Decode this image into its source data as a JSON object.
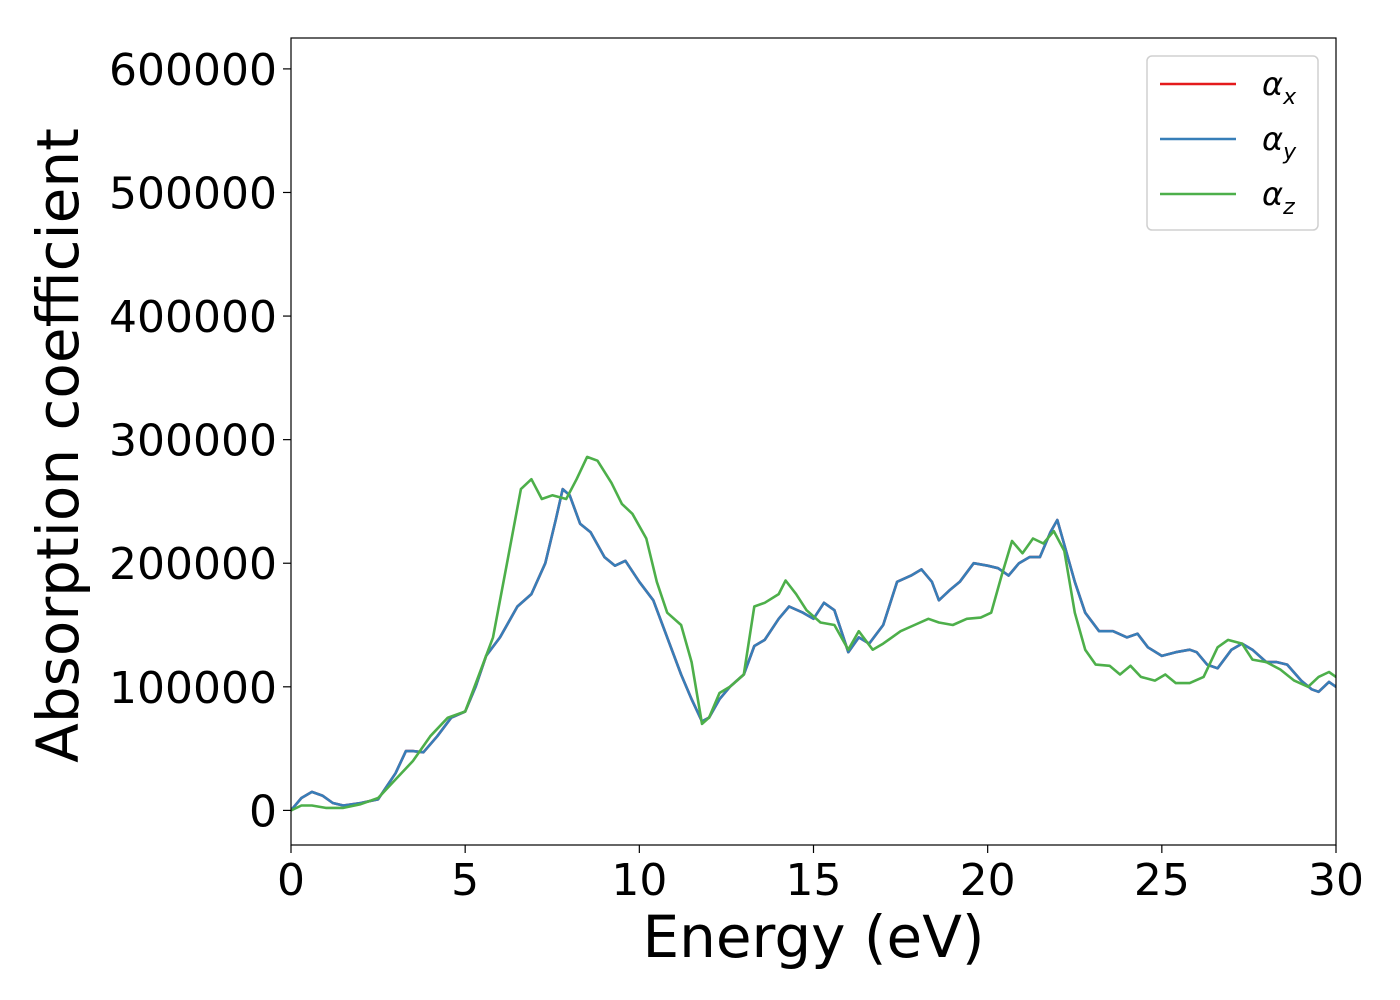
{
  "chart_data": {
    "type": "line",
    "xlabel": "Energy (eV)",
    "ylabel": "Absorption coefficient",
    "xlim": [
      0,
      30
    ],
    "ylim": [
      -28000,
      625000
    ],
    "xticks": [
      0,
      5,
      10,
      15,
      20,
      25,
      30
    ],
    "yticks": [
      0,
      100000,
      200000,
      300000,
      400000,
      500000,
      600000
    ],
    "grid": false,
    "legend_position": "top-right",
    "colors": {
      "x": "#e41a1c",
      "y": "#377eb8",
      "z": "#4daf4a"
    },
    "series": [
      {
        "name": "α_x",
        "symbol": "α",
        "subscript": "x",
        "color": "#e41a1c",
        "points": [
          [
            0,
            0
          ],
          [
            0.3,
            10000
          ],
          [
            0.6,
            15000
          ],
          [
            0.9,
            12000
          ],
          [
            1.2,
            6000
          ],
          [
            1.5,
            4000
          ],
          [
            2,
            6000
          ],
          [
            2.5,
            9000
          ],
          [
            3,
            30000
          ],
          [
            3.3,
            48000
          ],
          [
            3.5,
            48000
          ],
          [
            3.8,
            47000
          ],
          [
            4.2,
            60000
          ],
          [
            4.6,
            75000
          ],
          [
            5,
            80000
          ],
          [
            5.3,
            100000
          ],
          [
            5.6,
            125000
          ],
          [
            6,
            140000
          ],
          [
            6.5,
            165000
          ],
          [
            6.9,
            175000
          ],
          [
            7.3,
            200000
          ],
          [
            7.6,
            235000
          ],
          [
            7.8,
            260000
          ],
          [
            8,
            255000
          ],
          [
            8.3,
            232000
          ],
          [
            8.6,
            225000
          ],
          [
            9,
            205000
          ],
          [
            9.3,
            198000
          ],
          [
            9.6,
            202000
          ],
          [
            10,
            185000
          ],
          [
            10.4,
            170000
          ],
          [
            10.8,
            140000
          ],
          [
            11.2,
            110000
          ],
          [
            11.5,
            90000
          ],
          [
            11.8,
            72000
          ],
          [
            12,
            75000
          ],
          [
            12.3,
            90000
          ],
          [
            12.6,
            100000
          ],
          [
            13,
            110000
          ],
          [
            13.3,
            133000
          ],
          [
            13.6,
            138000
          ],
          [
            14,
            155000
          ],
          [
            14.3,
            165000
          ],
          [
            14.7,
            160000
          ],
          [
            15,
            155000
          ],
          [
            15.3,
            168000
          ],
          [
            15.6,
            162000
          ],
          [
            15.8,
            145000
          ],
          [
            16,
            128000
          ],
          [
            16.3,
            140000
          ],
          [
            16.6,
            135000
          ],
          [
            17,
            150000
          ],
          [
            17.4,
            185000
          ],
          [
            17.8,
            190000
          ],
          [
            18.1,
            195000
          ],
          [
            18.4,
            185000
          ],
          [
            18.6,
            170000
          ],
          [
            18.9,
            178000
          ],
          [
            19.2,
            185000
          ],
          [
            19.6,
            200000
          ],
          [
            20,
            198000
          ],
          [
            20.3,
            196000
          ],
          [
            20.6,
            190000
          ],
          [
            20.9,
            200000
          ],
          [
            21.2,
            205000
          ],
          [
            21.5,
            205000
          ],
          [
            21.8,
            225000
          ],
          [
            22,
            235000
          ],
          [
            22.2,
            215000
          ],
          [
            22.5,
            185000
          ],
          [
            22.8,
            160000
          ],
          [
            23.2,
            145000
          ],
          [
            23.6,
            145000
          ],
          [
            24,
            140000
          ],
          [
            24.3,
            143000
          ],
          [
            24.6,
            132000
          ],
          [
            25,
            125000
          ],
          [
            25.4,
            128000
          ],
          [
            25.8,
            130000
          ],
          [
            26,
            128000
          ],
          [
            26.3,
            118000
          ],
          [
            26.6,
            115000
          ],
          [
            27,
            130000
          ],
          [
            27.3,
            135000
          ],
          [
            27.6,
            130000
          ],
          [
            28,
            120000
          ],
          [
            28.3,
            120000
          ],
          [
            28.6,
            118000
          ],
          [
            29,
            105000
          ],
          [
            29.3,
            98000
          ],
          [
            29.5,
            96000
          ],
          [
            29.8,
            104000
          ],
          [
            30,
            100000
          ]
        ]
      },
      {
        "name": "α_y",
        "symbol": "α",
        "subscript": "y",
        "color": "#377eb8",
        "points": [
          [
            0,
            0
          ],
          [
            0.3,
            10000
          ],
          [
            0.6,
            15000
          ],
          [
            0.9,
            12000
          ],
          [
            1.2,
            6000
          ],
          [
            1.5,
            4000
          ],
          [
            2,
            6000
          ],
          [
            2.5,
            9000
          ],
          [
            3,
            30000
          ],
          [
            3.3,
            48000
          ],
          [
            3.5,
            48000
          ],
          [
            3.8,
            47000
          ],
          [
            4.2,
            60000
          ],
          [
            4.6,
            75000
          ],
          [
            5,
            80000
          ],
          [
            5.3,
            100000
          ],
          [
            5.6,
            125000
          ],
          [
            6,
            140000
          ],
          [
            6.5,
            165000
          ],
          [
            6.9,
            175000
          ],
          [
            7.3,
            200000
          ],
          [
            7.6,
            235000
          ],
          [
            7.8,
            260000
          ],
          [
            8,
            255000
          ],
          [
            8.3,
            232000
          ],
          [
            8.6,
            225000
          ],
          [
            9,
            205000
          ],
          [
            9.3,
            198000
          ],
          [
            9.6,
            202000
          ],
          [
            10,
            185000
          ],
          [
            10.4,
            170000
          ],
          [
            10.8,
            140000
          ],
          [
            11.2,
            110000
          ],
          [
            11.5,
            90000
          ],
          [
            11.8,
            72000
          ],
          [
            12,
            75000
          ],
          [
            12.3,
            90000
          ],
          [
            12.6,
            100000
          ],
          [
            13,
            110000
          ],
          [
            13.3,
            133000
          ],
          [
            13.6,
            138000
          ],
          [
            14,
            155000
          ],
          [
            14.3,
            165000
          ],
          [
            14.7,
            160000
          ],
          [
            15,
            155000
          ],
          [
            15.3,
            168000
          ],
          [
            15.6,
            162000
          ],
          [
            15.8,
            145000
          ],
          [
            16,
            128000
          ],
          [
            16.3,
            140000
          ],
          [
            16.6,
            135000
          ],
          [
            17,
            150000
          ],
          [
            17.4,
            185000
          ],
          [
            17.8,
            190000
          ],
          [
            18.1,
            195000
          ],
          [
            18.4,
            185000
          ],
          [
            18.6,
            170000
          ],
          [
            18.9,
            178000
          ],
          [
            19.2,
            185000
          ],
          [
            19.6,
            200000
          ],
          [
            20,
            198000
          ],
          [
            20.3,
            196000
          ],
          [
            20.6,
            190000
          ],
          [
            20.9,
            200000
          ],
          [
            21.2,
            205000
          ],
          [
            21.5,
            205000
          ],
          [
            21.8,
            225000
          ],
          [
            22,
            235000
          ],
          [
            22.2,
            215000
          ],
          [
            22.5,
            185000
          ],
          [
            22.8,
            160000
          ],
          [
            23.2,
            145000
          ],
          [
            23.6,
            145000
          ],
          [
            24,
            140000
          ],
          [
            24.3,
            143000
          ],
          [
            24.6,
            132000
          ],
          [
            25,
            125000
          ],
          [
            25.4,
            128000
          ],
          [
            25.8,
            130000
          ],
          [
            26,
            128000
          ],
          [
            26.3,
            118000
          ],
          [
            26.6,
            115000
          ],
          [
            27,
            130000
          ],
          [
            27.3,
            135000
          ],
          [
            27.6,
            130000
          ],
          [
            28,
            120000
          ],
          [
            28.3,
            120000
          ],
          [
            28.6,
            118000
          ],
          [
            29,
            105000
          ],
          [
            29.3,
            98000
          ],
          [
            29.5,
            96000
          ],
          [
            29.8,
            104000
          ],
          [
            30,
            100000
          ]
        ]
      },
      {
        "name": "α_z",
        "symbol": "α",
        "subscript": "z",
        "color": "#4daf4a",
        "points": [
          [
            0,
            0
          ],
          [
            0.3,
            4000
          ],
          [
            0.6,
            4000
          ],
          [
            1,
            2000
          ],
          [
            1.5,
            2000
          ],
          [
            2,
            5000
          ],
          [
            2.5,
            10000
          ],
          [
            3,
            25000
          ],
          [
            3.5,
            40000
          ],
          [
            4,
            60000
          ],
          [
            4.5,
            75000
          ],
          [
            5,
            80000
          ],
          [
            5.4,
            110000
          ],
          [
            5.8,
            140000
          ],
          [
            6.2,
            200000
          ],
          [
            6.6,
            260000
          ],
          [
            6.9,
            268000
          ],
          [
            7.2,
            252000
          ],
          [
            7.5,
            255000
          ],
          [
            7.9,
            252000
          ],
          [
            8.2,
            268000
          ],
          [
            8.5,
            286000
          ],
          [
            8.8,
            283000
          ],
          [
            9.2,
            265000
          ],
          [
            9.5,
            248000
          ],
          [
            9.8,
            240000
          ],
          [
            10.2,
            220000
          ],
          [
            10.5,
            185000
          ],
          [
            10.8,
            160000
          ],
          [
            11.2,
            150000
          ],
          [
            11.5,
            120000
          ],
          [
            11.8,
            70000
          ],
          [
            12,
            75000
          ],
          [
            12.3,
            95000
          ],
          [
            12.6,
            100000
          ],
          [
            13,
            110000
          ],
          [
            13.3,
            165000
          ],
          [
            13.6,
            168000
          ],
          [
            14,
            175000
          ],
          [
            14.2,
            186000
          ],
          [
            14.5,
            175000
          ],
          [
            14.8,
            162000
          ],
          [
            15.2,
            152000
          ],
          [
            15.6,
            150000
          ],
          [
            16,
            130000
          ],
          [
            16.3,
            145000
          ],
          [
            16.7,
            130000
          ],
          [
            17,
            135000
          ],
          [
            17.5,
            145000
          ],
          [
            17.9,
            150000
          ],
          [
            18.3,
            155000
          ],
          [
            18.6,
            152000
          ],
          [
            19,
            150000
          ],
          [
            19.4,
            155000
          ],
          [
            19.8,
            156000
          ],
          [
            20.1,
            160000
          ],
          [
            20.4,
            190000
          ],
          [
            20.7,
            218000
          ],
          [
            21,
            208000
          ],
          [
            21.3,
            220000
          ],
          [
            21.6,
            216000
          ],
          [
            21.9,
            226000
          ],
          [
            22.2,
            210000
          ],
          [
            22.5,
            160000
          ],
          [
            22.8,
            130000
          ],
          [
            23.1,
            118000
          ],
          [
            23.5,
            117000
          ],
          [
            23.8,
            110000
          ],
          [
            24.1,
            117000
          ],
          [
            24.4,
            108000
          ],
          [
            24.8,
            105000
          ],
          [
            25.1,
            110000
          ],
          [
            25.4,
            103000
          ],
          [
            25.8,
            103000
          ],
          [
            26.2,
            108000
          ],
          [
            26.6,
            132000
          ],
          [
            26.9,
            138000
          ],
          [
            27.3,
            135000
          ],
          [
            27.6,
            122000
          ],
          [
            28,
            120000
          ],
          [
            28.4,
            114000
          ],
          [
            28.8,
            105000
          ],
          [
            29.2,
            100000
          ],
          [
            29.5,
            108000
          ],
          [
            29.8,
            112000
          ],
          [
            30,
            108000
          ]
        ]
      }
    ]
  }
}
